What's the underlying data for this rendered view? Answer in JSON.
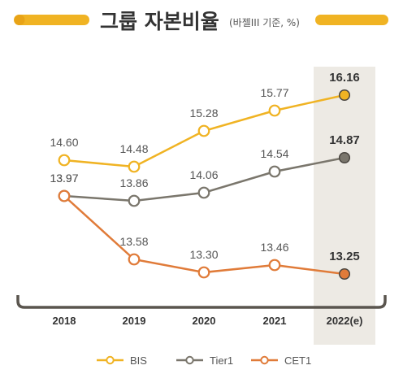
{
  "title": "그룹 자본비율",
  "subtitle": "(바젤III 기준, %)",
  "chart_data": {
    "type": "line",
    "title": "그룹 자본비율",
    "subtitle": "(바젤III 기준, %)",
    "categories": [
      "2018",
      "2019",
      "2020",
      "2021",
      "2022(e)"
    ],
    "highlight_category": "2022(e)",
    "grid": false,
    "legend_position": "bottom",
    "series": [
      {
        "name": "BIS",
        "color": "#F0B323",
        "values": [
          14.6,
          14.48,
          15.28,
          15.77,
          16.16
        ],
        "labels": [
          "14.60",
          "14.48",
          "15.28",
          "15.77",
          "16.16"
        ]
      },
      {
        "name": "Tier1",
        "color": "#7A766C",
        "values": [
          13.97,
          13.86,
          14.06,
          14.54,
          14.87
        ],
        "labels": [
          "13.97",
          "13.86",
          "14.06",
          "14.54",
          "14.87"
        ]
      },
      {
        "name": "CET1",
        "color": "#E07B39",
        "values": [
          13.97,
          13.58,
          13.3,
          13.46,
          13.25
        ],
        "labels": [
          "13.97",
          "13.58",
          "13.30",
          "13.46",
          "13.25"
        ]
      }
    ]
  },
  "colors": {
    "accent": "#F0B323",
    "accent_dark": "#E8A317",
    "highlight_band": "#EDEAE4",
    "axis_bracket": "#5A554E"
  }
}
